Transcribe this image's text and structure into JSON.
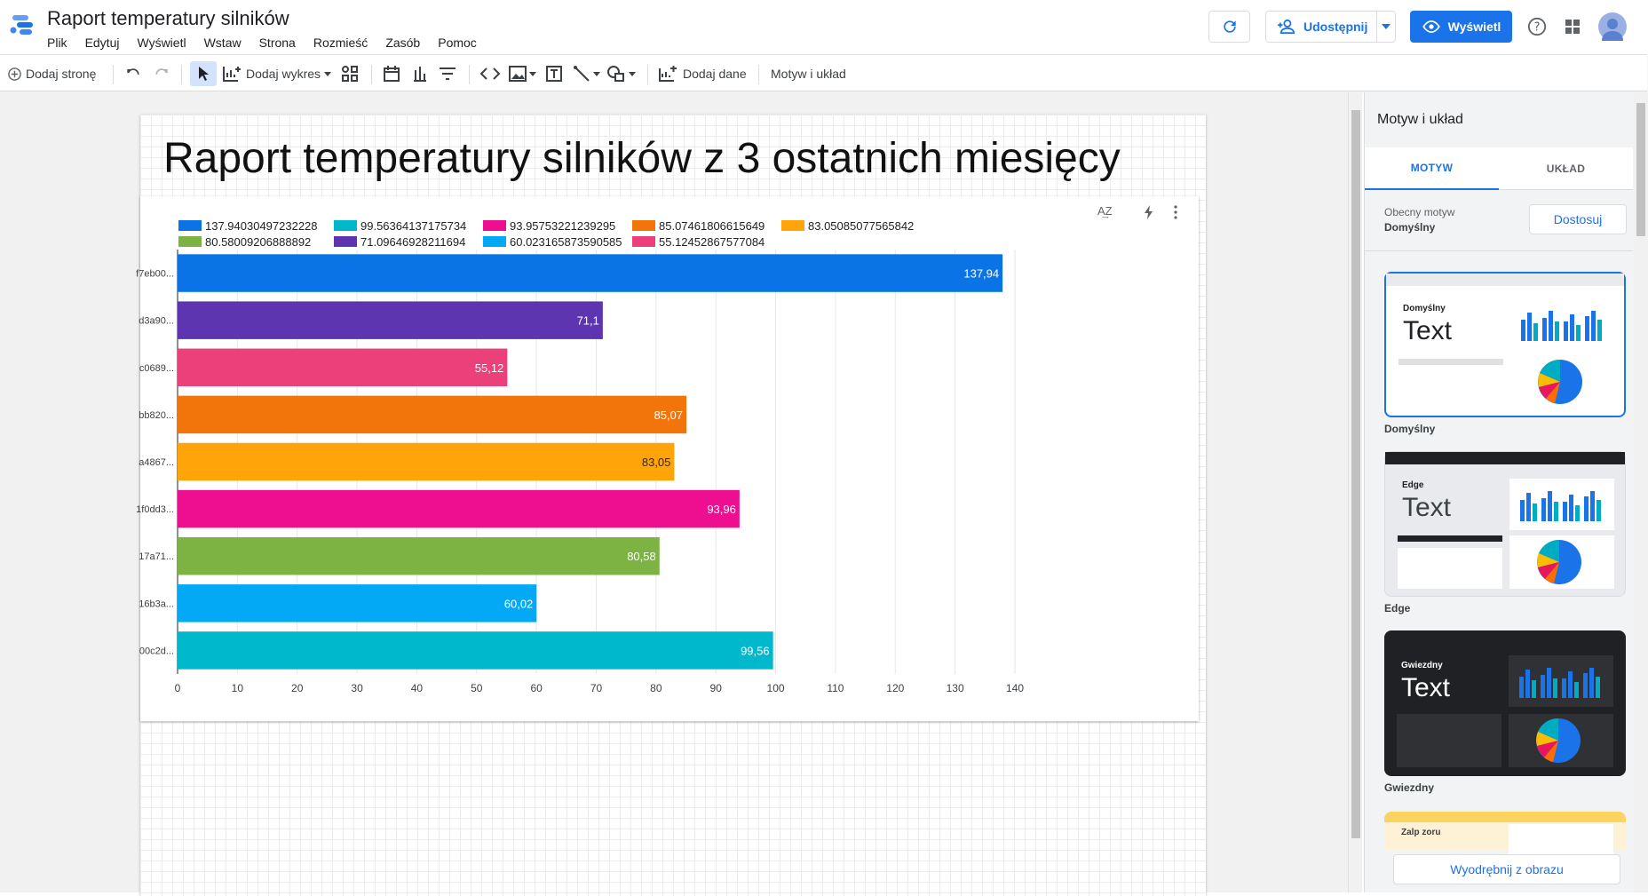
{
  "header": {
    "title": "Raport temperatury silników",
    "menu": [
      "Plik",
      "Edytuj",
      "Wyświetl",
      "Wstaw",
      "Strona",
      "Rozmieść",
      "Zasób",
      "Pomoc"
    ],
    "share_label": "Udostępnij",
    "view_label": "Wyświetl"
  },
  "toolbar": {
    "add_page": "Dodaj stronę",
    "add_chart": "Dodaj wykres",
    "add_data": "Dodaj dane",
    "theme_layout": "Motyw i układ"
  },
  "report": {
    "title": "Raport temperatury silników z 3 ostatnich miesięcy"
  },
  "chart_data": {
    "type": "bar",
    "orientation": "horizontal",
    "categories": [
      "f7eb00...",
      "d3a90...",
      "c0689...",
      "bb820...",
      "a4867...",
      "1f0dd3...",
      "17a71...",
      "16b3a...",
      "00c2d..."
    ],
    "values": [
      137.94030497232228,
      71.09646928211694,
      55.12452867577084,
      85.07461806615649,
      83.05085077565842,
      93.95753221239295,
      80.58009206888892,
      60.023165873590585,
      99.56364137175734
    ],
    "data_labels": [
      "137,94",
      "71,1",
      "55,12",
      "85,07",
      "83,05",
      "93,96",
      "80,58",
      "60,02",
      "99,56"
    ],
    "colors": [
      "#0a73e6",
      "#5e35b1",
      "#ec407a",
      "#f2750c",
      "#ffa50a",
      "#ed0f8f",
      "#7cb342",
      "#03a9f4",
      "#00b8cc"
    ],
    "legend": [
      {
        "label": "137.94030497232228",
        "color": "#0a73e6"
      },
      {
        "label": "99.56364137175734",
        "color": "#00b8cc"
      },
      {
        "label": "93.95753221239295",
        "color": "#ed0f8f"
      },
      {
        "label": "85.07461806615649",
        "color": "#f2750c"
      },
      {
        "label": "83.05085077565842",
        "color": "#ffa50a"
      },
      {
        "label": "80.58009206888892",
        "color": "#7cb342"
      },
      {
        "label": "71.09646928211694",
        "color": "#5e35b1"
      },
      {
        "label": "60.023165873590585",
        "color": "#03a9f4"
      },
      {
        "label": "55.12452867577084",
        "color": "#ec407a"
      }
    ],
    "xlim": [
      0,
      140
    ],
    "xticks": [
      "0",
      "10",
      "20",
      "30",
      "40",
      "50",
      "60",
      "70",
      "80",
      "90",
      "100",
      "110",
      "120",
      "130",
      "140"
    ],
    "legend_position": "top",
    "grid": true,
    "title": "",
    "xlabel": "",
    "ylabel": ""
  },
  "side_panel": {
    "title": "Motyw i układ",
    "tabs": [
      "MOTYW",
      "UKŁAD"
    ],
    "current_theme_label": "Obecny motyw",
    "current_theme_value": "Domyślny",
    "customize_label": "Dostosuj",
    "themes": [
      {
        "name": "Domyślny",
        "card_title": "Domyślny",
        "sample_text": "Text"
      },
      {
        "name": "Edge",
        "card_title": "Edge",
        "sample_text": "Text"
      },
      {
        "name": "Gwiezdny",
        "card_title": "Gwiezdny",
        "sample_text": "Text"
      },
      {
        "name": "",
        "card_title": "Zalp zoru",
        "sample_text": ""
      }
    ],
    "extract_label": "Wyodrębnij z obrazu"
  },
  "colors": {
    "accent": "#1a73e8"
  }
}
